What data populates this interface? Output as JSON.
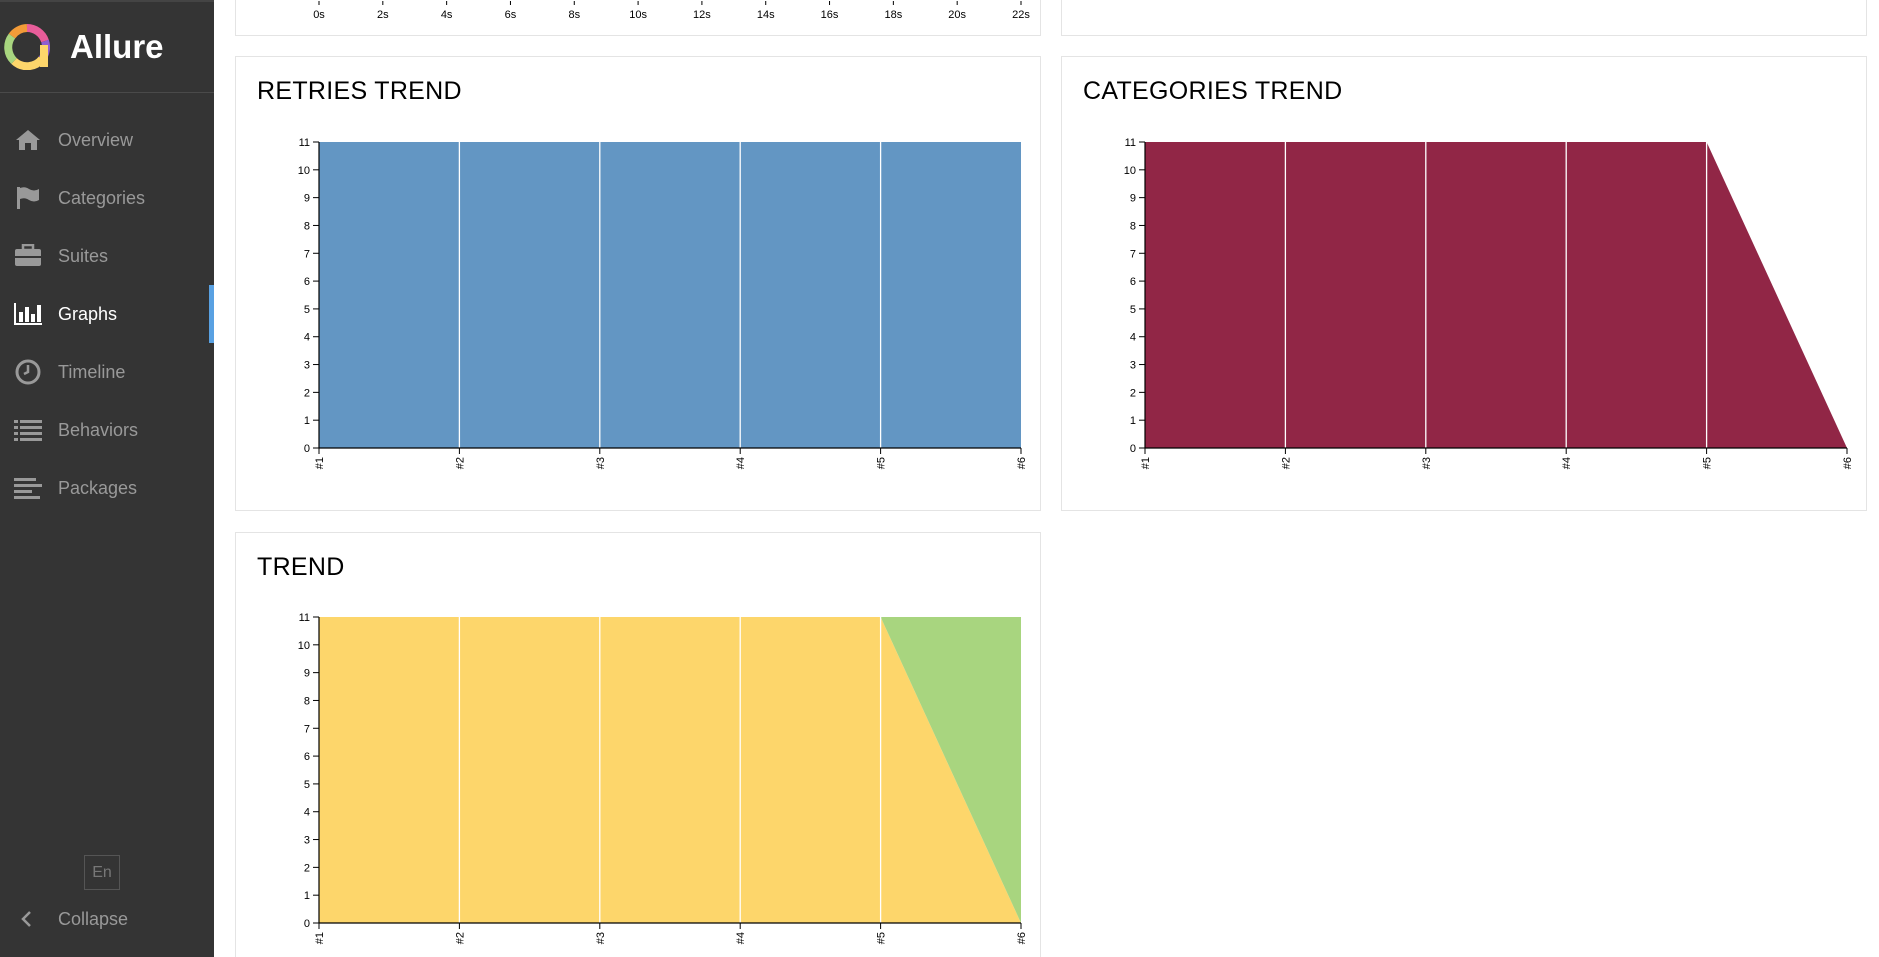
{
  "sidebar": {
    "brand": "Allure",
    "items": [
      {
        "label": "Overview",
        "icon": "home-icon"
      },
      {
        "label": "Categories",
        "icon": "flag-icon"
      },
      {
        "label": "Suites",
        "icon": "briefcase-icon"
      },
      {
        "label": "Graphs",
        "icon": "bar-chart-icon",
        "active": true
      },
      {
        "label": "Timeline",
        "icon": "clock-icon"
      },
      {
        "label": "Behaviors",
        "icon": "list-icon"
      },
      {
        "label": "Packages",
        "icon": "align-left-icon"
      }
    ],
    "language": "En",
    "collapse_label": "Collapse"
  },
  "timeline_axis": {
    "ticks": [
      "0s",
      "2s",
      "4s",
      "6s",
      "8s",
      "10s",
      "12s",
      "14s",
      "16s",
      "18s",
      "20s",
      "22s"
    ]
  },
  "widgets": {
    "retries_title": "RETRIES TREND",
    "categories_title": "CATEGORIES TREND",
    "trend_title": "TREND"
  },
  "colors": {
    "retries": "#6396c3",
    "categories": "#912646",
    "passed": "#fdd66b",
    "other": "#a8d57f",
    "accent": "#59a1e2"
  },
  "chart_data": [
    {
      "type": "area",
      "title": "RETRIES TREND",
      "x": [
        "#1",
        "#2",
        "#3",
        "#4",
        "#5",
        "#6"
      ],
      "ylim": [
        0,
        11
      ],
      "yticks": [
        "0",
        "1",
        "2",
        "3",
        "4",
        "5",
        "6",
        "7",
        "8",
        "9",
        "10",
        "11"
      ],
      "series": [
        {
          "values": [
            11,
            11,
            11,
            11,
            11,
            11
          ],
          "color": "#6396c3"
        }
      ]
    },
    {
      "type": "area",
      "title": "CATEGORIES TREND",
      "x": [
        "#1",
        "#2",
        "#3",
        "#4",
        "#5",
        "#6"
      ],
      "ylim": [
        0,
        11
      ],
      "yticks": [
        "0",
        "1",
        "2",
        "3",
        "4",
        "5",
        "6",
        "7",
        "8",
        "9",
        "10",
        "11"
      ],
      "series": [
        {
          "values": [
            11,
            11,
            11,
            11,
            11,
            0
          ],
          "color": "#912646"
        }
      ]
    },
    {
      "type": "area",
      "title": "TREND",
      "stacked": true,
      "x": [
        "#1",
        "#2",
        "#3",
        "#4",
        "#5",
        "#6"
      ],
      "ylim": [
        0,
        11
      ],
      "yticks": [
        "0",
        "1",
        "2",
        "3",
        "4",
        "5",
        "6",
        "7",
        "8",
        "9",
        "10",
        "11"
      ],
      "series": [
        {
          "values": [
            11,
            11,
            11,
            11,
            11,
            0
          ],
          "color": "#fdd66b"
        },
        {
          "values": [
            0,
            0,
            0,
            0,
            0,
            11
          ],
          "color": "#a8d57f"
        }
      ]
    }
  ]
}
